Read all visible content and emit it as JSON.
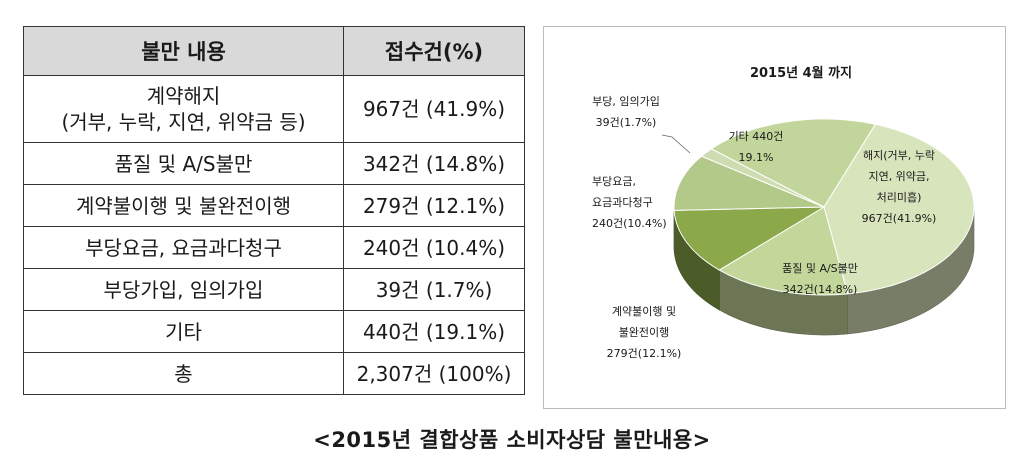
{
  "table": {
    "headers": [
      "불만 내용",
      "접수건(%)"
    ],
    "rows": [
      {
        "content_lines": [
          "계약해지",
          "(거부, 누락, 지연, 위약금 등)"
        ],
        "count": "967건 (41.9%)"
      },
      {
        "content_lines": [
          "품질 및 A/S불만"
        ],
        "count": "342건 (14.8%)"
      },
      {
        "content_lines": [
          "계약불이행 및 불완전이행"
        ],
        "count": "279건 (12.1%)"
      },
      {
        "content_lines": [
          "부당요금, 요금과다청구"
        ],
        "count": "240건 (10.4%)"
      },
      {
        "content_lines": [
          "부당가입, 임의가입"
        ],
        "count": "39건 (1.7%)"
      },
      {
        "content_lines": [
          "기타"
        ],
        "count": "440건 (19.1%)"
      },
      {
        "content_lines": [
          "총"
        ],
        "count": "2,307건 (100%)"
      }
    ]
  },
  "caption": "<2015년 결합상품 소비자상담 불만내용>",
  "chart_data": {
    "type": "pie",
    "title": "2015년 4월 까지",
    "slices": [
      {
        "label_lines": [
          "해지(거부, 누락",
          "지연, 위약금,",
          "처리미흡)",
          "967건(41.9%)"
        ],
        "value": 967,
        "percent": 41.9,
        "color": "#d8e4bc"
      },
      {
        "label_lines": [
          "품질 및 A/S불만",
          "342건(14.8%)"
        ],
        "value": 342,
        "percent": 14.8,
        "color": "#c4d79b"
      },
      {
        "label_lines": [
          "계약불이행 및",
          "불완전이행",
          "279건(12.1%)"
        ],
        "value": 279,
        "percent": 12.1,
        "color": "#8ba84a"
      },
      {
        "label_lines": [
          "부당요금,",
          "요금과다청구",
          "240건(10.4%)"
        ],
        "value": 240,
        "percent": 10.4,
        "color": "#b3c98a"
      },
      {
        "label_lines": [
          "부당, 임의가입",
          "39건(1.7%)"
        ],
        "value": 39,
        "percent": 1.7,
        "color": "#cfdcb1"
      },
      {
        "label_lines": [
          "기타 440건",
          "19.1%"
        ],
        "value": 440,
        "percent": 19.1,
        "color": "#c2d69b"
      }
    ]
  }
}
